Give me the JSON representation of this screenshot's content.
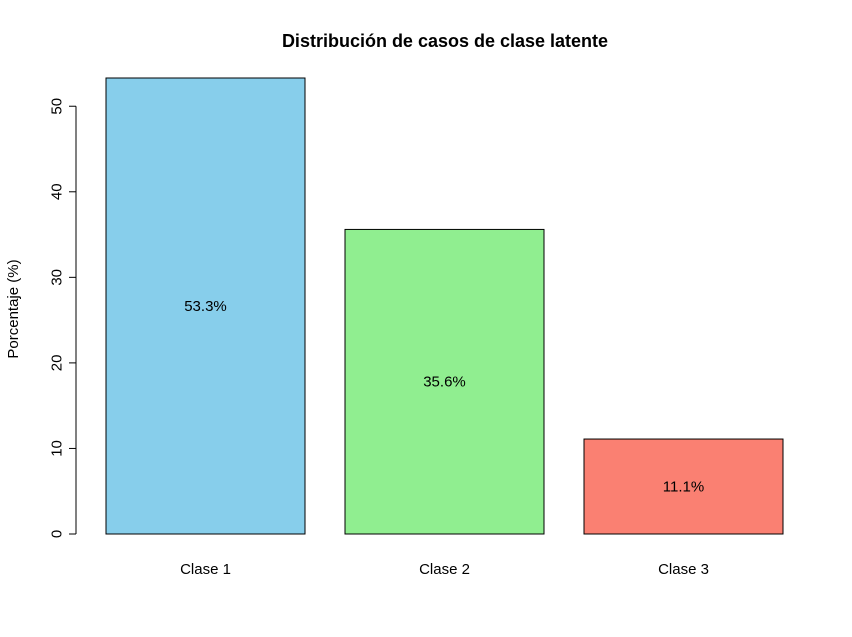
{
  "chart_data": {
    "type": "bar",
    "title": "Distribución de casos de clase latente",
    "xlabel": "",
    "ylabel": "Porcentaje (%)",
    "categories": [
      "Clase 1",
      "Clase 2",
      "Clase 3"
    ],
    "values": [
      53.3,
      35.6,
      11.1
    ],
    "data_labels": [
      "53.3%",
      "35.6%",
      "11.1%"
    ],
    "colors": [
      "#87CEEB",
      "#90EE90",
      "#FA8072"
    ],
    "ylim": [
      0,
      53.3
    ],
    "yticks": [
      0,
      10,
      20,
      30,
      40,
      50
    ],
    "grid": false,
    "legend": "none"
  }
}
